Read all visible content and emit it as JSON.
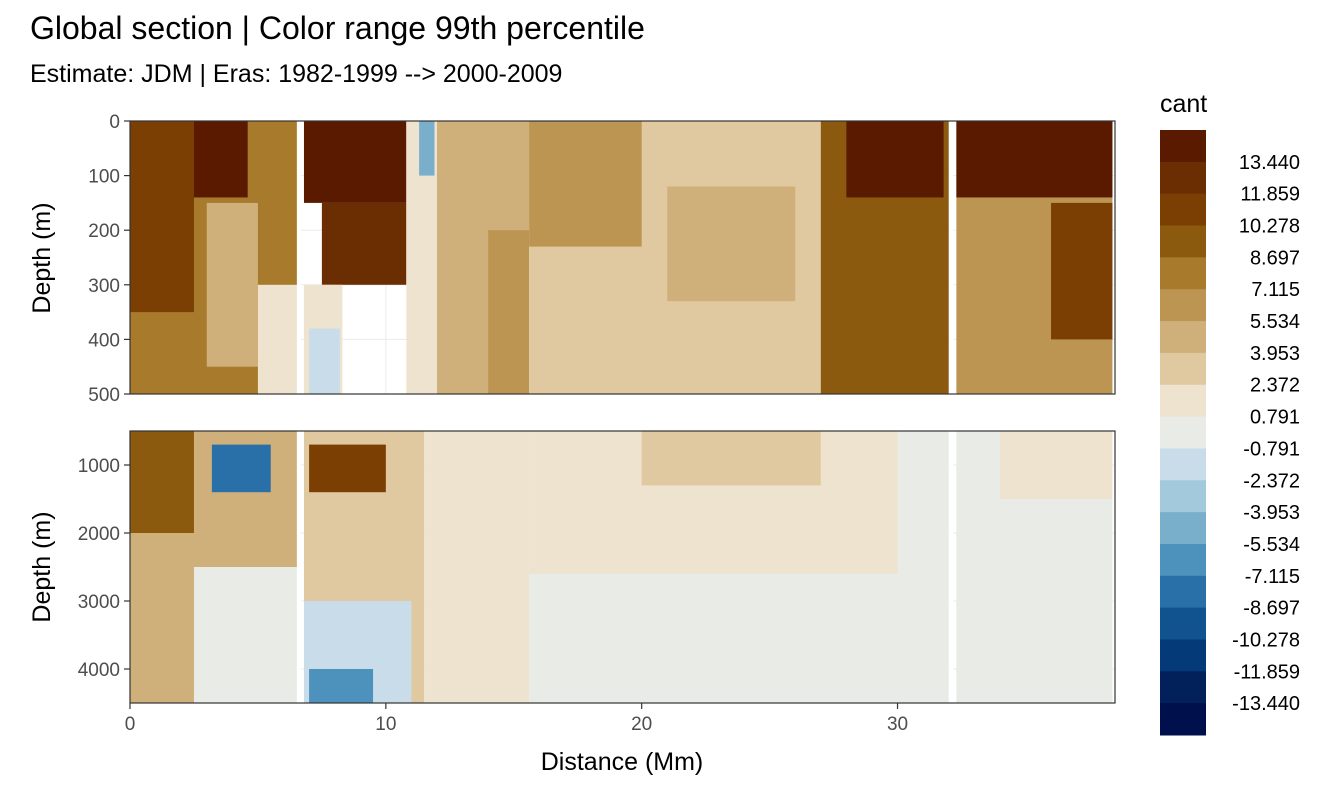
{
  "title": "Global section | Color range 99th percentile",
  "subtitle": "Estimate: JDM  | Eras: 1982-1999 --> 2000-2009",
  "chart_data": {
    "type": "heatmap",
    "xlabel": "Distance (Mm)",
    "ylabel": "Depth (m)",
    "xlim": [
      0,
      38.5
    ],
    "x_ticks": [
      "0",
      "10",
      "20",
      "30"
    ],
    "panels": [
      {
        "name": "upper",
        "ylim": [
          0,
          500
        ],
        "y_ticks": [
          "0",
          "100",
          "200",
          "300",
          "400",
          "500"
        ]
      },
      {
        "name": "lower",
        "ylim": [
          500,
          4500
        ],
        "y_ticks": [
          "1000",
          "2000",
          "3000",
          "4000"
        ]
      }
    ],
    "station_gaps_x": [
      6.6,
      32.1
    ],
    "legend": {
      "title": "cant",
      "breaks": [
        "13.440",
        "11.859",
        "10.278",
        "8.697",
        "7.115",
        "5.534",
        "3.953",
        "2.372",
        "0.791",
        "-0.791",
        "-2.372",
        "-3.953",
        "-5.534",
        "-7.115",
        "-8.697",
        "-10.278",
        "-11.859",
        "-13.440"
      ],
      "colors": [
        "#5a1a00",
        "#6b2d02",
        "#7b3f04",
        "#8c5a0f",
        "#a87a2c",
        "#bc9552",
        "#cfb07a",
        "#e0c9a0",
        "#eee3cf",
        "#e9ebe7",
        "#c8dde9",
        "#a3c9dc",
        "#7aafcc",
        "#4d91bd",
        "#2a70a8",
        "#11538f",
        "#053a78",
        "#02205a",
        "#00104d"
      ]
    },
    "regions_upper": [
      {
        "x0": 0,
        "x1": 6.6,
        "y0": 0,
        "y1": 500,
        "level": 4
      },
      {
        "x0": 0,
        "x1": 2.5,
        "y0": 0,
        "y1": 350,
        "level": 2
      },
      {
        "x0": 2.5,
        "x1": 4.6,
        "y0": 0,
        "y1": 140,
        "level": 0
      },
      {
        "x0": 3.0,
        "x1": 5.0,
        "y0": 150,
        "y1": 450,
        "level": 6
      },
      {
        "x0": 5.0,
        "x1": 6.6,
        "y0": 300,
        "y1": 500,
        "level": 8
      },
      {
        "x0": 6.8,
        "x1": 10.8,
        "y0": 0,
        "y1": 150,
        "level": 0
      },
      {
        "x0": 7.5,
        "x1": 10.8,
        "y0": 150,
        "y1": 300,
        "level": 1
      },
      {
        "x0": 6.8,
        "x1": 8.3,
        "y0": 300,
        "y1": 500,
        "level": 8
      },
      {
        "x0": 7.0,
        "x1": 8.2,
        "y0": 380,
        "y1": 500,
        "level": 10
      },
      {
        "x0": 10.8,
        "x1": 12.0,
        "y0": 0,
        "y1": 500,
        "level": 8
      },
      {
        "x0": 11.3,
        "x1": 11.9,
        "y0": 0,
        "y1": 100,
        "level": 12
      },
      {
        "x0": 12.0,
        "x1": 15.6,
        "y0": 0,
        "y1": 500,
        "level": 6
      },
      {
        "x0": 14.0,
        "x1": 15.6,
        "y0": 200,
        "y1": 500,
        "level": 5
      },
      {
        "x0": 15.6,
        "x1": 27.0,
        "y0": 0,
        "y1": 500,
        "level": 7
      },
      {
        "x0": 15.6,
        "x1": 20.0,
        "y0": 0,
        "y1": 230,
        "level": 5
      },
      {
        "x0": 21.0,
        "x1": 26.0,
        "y0": 120,
        "y1": 330,
        "level": 6
      },
      {
        "x0": 27.0,
        "x1": 32.0,
        "y0": 0,
        "y1": 500,
        "level": 3
      },
      {
        "x0": 28.0,
        "x1": 31.8,
        "y0": 0,
        "y1": 140,
        "level": 0
      },
      {
        "x0": 32.3,
        "x1": 38.4,
        "y0": 0,
        "y1": 500,
        "level": 5
      },
      {
        "x0": 32.3,
        "x1": 38.4,
        "y0": 0,
        "y1": 140,
        "level": 0
      },
      {
        "x0": 36.0,
        "x1": 38.4,
        "y0": 150,
        "y1": 400,
        "level": 2
      }
    ],
    "regions_lower": [
      {
        "x0": 0,
        "x1": 6.6,
        "y0": 500,
        "y1": 4500,
        "level": 6
      },
      {
        "x0": 0,
        "x1": 2.5,
        "y0": 500,
        "y1": 2000,
        "level": 3
      },
      {
        "x0": 2.5,
        "x1": 6.6,
        "y0": 2500,
        "y1": 4500,
        "level": 9
      },
      {
        "x0": 3.2,
        "x1": 5.5,
        "y0": 700,
        "y1": 1400,
        "level": 14
      },
      {
        "x0": 6.8,
        "x1": 11.5,
        "y0": 500,
        "y1": 4500,
        "level": 7
      },
      {
        "x0": 7.0,
        "x1": 10.0,
        "y0": 700,
        "y1": 1400,
        "level": 2
      },
      {
        "x0": 6.8,
        "x1": 11.0,
        "y0": 3000,
        "y1": 4500,
        "level": 10
      },
      {
        "x0": 7.0,
        "x1": 9.5,
        "y0": 4000,
        "y1": 4500,
        "level": 13
      },
      {
        "x0": 11.5,
        "x1": 15.6,
        "y0": 500,
        "y1": 4500,
        "level": 8
      },
      {
        "x0": 15.6,
        "x1": 32.0,
        "y0": 500,
        "y1": 4500,
        "level": 9
      },
      {
        "x0": 15.6,
        "x1": 30.0,
        "y0": 500,
        "y1": 2600,
        "level": 8
      },
      {
        "x0": 20.0,
        "x1": 27.0,
        "y0": 500,
        "y1": 1300,
        "level": 7
      },
      {
        "x0": 32.3,
        "x1": 38.4,
        "y0": 500,
        "y1": 4500,
        "level": 9
      },
      {
        "x0": 34.0,
        "x1": 38.4,
        "y0": 500,
        "y1": 1500,
        "level": 8
      }
    ]
  }
}
